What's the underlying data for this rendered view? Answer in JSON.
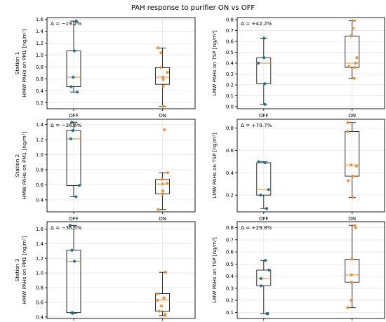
{
  "figure": {
    "title": "PAH response to purifier ON vs OFF"
  },
  "colors": {
    "off": "#1f6f8b",
    "on": "#f28e2b",
    "median": "#f28e2b",
    "grid": "#e6e6e6",
    "box": "#000000"
  },
  "chart_data": [
    {
      "type": "box",
      "row": 0,
      "col": 0,
      "station_label": "Station 1",
      "ylabel": "HMW PAHs on PM1 [ng/m³]",
      "delta": "Δ = −19.2%",
      "categories": [
        "OFF",
        "ON"
      ],
      "ylim": [
        0.1,
        1.63
      ],
      "yticks": [
        0.2,
        0.4,
        0.6,
        0.8,
        1.0,
        1.2,
        1.4,
        1.6
      ],
      "ytick_labels": [
        "0.2",
        "0.4",
        "0.6",
        "0.8",
        "1.0",
        "1.2",
        "1.4",
        "1.6"
      ],
      "boxes": [
        {
          "name": "OFF",
          "min": 0.38,
          "q1": 0.47,
          "median": 0.63,
          "q3": 1.07,
          "max": 1.57,
          "points": [
            1.57,
            1.07,
            0.63,
            0.47,
            0.38
          ]
        },
        {
          "name": "ON",
          "min": 0.14,
          "q1": 0.51,
          "median": 0.63,
          "q3": 0.79,
          "max": 1.12,
          "points": [
            1.12,
            1.04,
            0.79,
            0.71,
            0.63,
            0.59,
            0.48,
            0.14
          ]
        }
      ]
    },
    {
      "type": "box",
      "row": 0,
      "col": 1,
      "ylabel": "LMW PAHs on TSP [ng/m³]",
      "delta": "Δ = +42.2%",
      "categories": [
        "OFF",
        "ON"
      ],
      "ylim": [
        -0.02,
        0.82
      ],
      "yticks": [
        0.0,
        0.1,
        0.2,
        0.3,
        0.4,
        0.5,
        0.6,
        0.7,
        0.8
      ],
      "ytick_labels": [
        "0.0",
        "0.1",
        "0.2",
        "0.3",
        "0.4",
        "0.5",
        "0.6",
        "0.7",
        "0.8"
      ],
      "boxes": [
        {
          "name": "OFF",
          "min": 0.02,
          "q1": 0.21,
          "median": 0.4,
          "q3": 0.45,
          "max": 0.63,
          "points": [
            0.63,
            0.45,
            0.4,
            0.21,
            0.02
          ]
        },
        {
          "name": "ON",
          "min": 0.26,
          "q1": 0.36,
          "median": 0.4,
          "q3": 0.65,
          "max": 0.79,
          "points": [
            0.79,
            0.72,
            0.65,
            0.45,
            0.4,
            0.37,
            0.36,
            0.26
          ]
        }
      ]
    },
    {
      "type": "box",
      "row": 1,
      "col": 0,
      "station_label": "Station 2",
      "ylabel": "HMW PAHs on PM1 [ng/m³]",
      "delta": "Δ = −36.6%",
      "categories": [
        "OFF",
        "ON"
      ],
      "ylim": [
        0.24,
        1.47
      ],
      "yticks": [
        0.4,
        0.6,
        0.8,
        1.0,
        1.2,
        1.4
      ],
      "ytick_labels": [
        "0.4",
        "0.6",
        "0.8",
        "1.0",
        "1.2",
        "1.4"
      ],
      "boxes": [
        {
          "name": "OFF",
          "min": 0.44,
          "q1": 0.59,
          "median": 1.21,
          "q3": 1.32,
          "max": 1.43,
          "points": [
            1.43,
            1.32,
            1.21,
            0.59,
            0.44
          ]
        },
        {
          "name": "ON",
          "min": 0.27,
          "q1": 0.48,
          "median": 0.61,
          "q3": 0.67,
          "max": 0.76,
          "points": [
            1.33,
            0.76,
            0.67,
            0.62,
            0.61,
            0.52,
            0.48,
            0.27
          ]
        }
      ]
    },
    {
      "type": "box",
      "row": 1,
      "col": 1,
      "ylabel": "LMW PAHs on TSP [ng/m³]",
      "delta": "Δ = +70.7%",
      "categories": [
        "OFF",
        "ON"
      ],
      "ylim": [
        0.05,
        0.88
      ],
      "yticks": [
        0.2,
        0.4,
        0.6,
        0.8
      ],
      "ytick_labels": [
        "0.2",
        "0.4",
        "0.6",
        "0.8"
      ],
      "boxes": [
        {
          "name": "OFF",
          "min": 0.08,
          "q1": 0.2,
          "median": 0.25,
          "q3": 0.49,
          "max": 0.5,
          "points": [
            0.5,
            0.49,
            0.25,
            0.2,
            0.08
          ]
        },
        {
          "name": "ON",
          "min": 0.18,
          "q1": 0.37,
          "median": 0.47,
          "q3": 0.77,
          "max": 0.85,
          "points": [
            0.85,
            0.77,
            0.47,
            0.46,
            0.37,
            0.33,
            0.18
          ]
        }
      ]
    },
    {
      "type": "box",
      "row": 2,
      "col": 0,
      "station_label": "Station 3",
      "ylabel": "HMW PAHs on PM1 [ng/m³]",
      "delta": "Δ = −36.5%",
      "categories": [
        "OFF",
        "ON"
      ],
      "ylim": [
        0.38,
        1.7
      ],
      "yticks": [
        0.4,
        0.6,
        0.8,
        1.0,
        1.2,
        1.4,
        1.6
      ],
      "ytick_labels": [
        "0.4",
        "0.6",
        "0.8",
        "1.0",
        "1.2",
        "1.4",
        "1.6"
      ],
      "boxes": [
        {
          "name": "OFF",
          "min": 0.45,
          "q1": 0.46,
          "median": 1.16,
          "q3": 1.31,
          "max": 1.65,
          "points": [
            1.65,
            1.31,
            1.16,
            0.46,
            0.45
          ]
        },
        {
          "name": "ON",
          "min": 0.42,
          "q1": 0.48,
          "median": 0.63,
          "q3": 0.72,
          "max": 1.01,
          "points": [
            1.01,
            0.72,
            0.66,
            0.63,
            0.55,
            0.48,
            0.44,
            0.42
          ]
        }
      ]
    },
    {
      "type": "box",
      "row": 2,
      "col": 1,
      "ylabel": "LMW PAHs on TSP [ng/m³]",
      "delta": "Δ = +29.8%",
      "categories": [
        "OFF",
        "ON"
      ],
      "ylim": [
        0.05,
        0.85
      ],
      "yticks": [
        0.1,
        0.2,
        0.3,
        0.4,
        0.5,
        0.6,
        0.7,
        0.8
      ],
      "ytick_labels": [
        "0.1",
        "0.2",
        "0.3",
        "0.4",
        "0.5",
        "0.6",
        "0.7",
        "0.8"
      ],
      "boxes": [
        {
          "name": "OFF",
          "min": 0.09,
          "q1": 0.32,
          "median": 0.38,
          "q3": 0.45,
          "max": 0.53,
          "points": [
            0.53,
            0.45,
            0.38,
            0.32,
            0.09,
            0.09
          ]
        },
        {
          "name": "ON",
          "min": 0.14,
          "q1": 0.35,
          "median": 0.41,
          "q3": 0.54,
          "max": 0.82,
          "points": [
            0.82,
            0.8,
            0.54,
            0.41,
            0.35,
            0.2,
            0.14
          ]
        }
      ]
    }
  ]
}
